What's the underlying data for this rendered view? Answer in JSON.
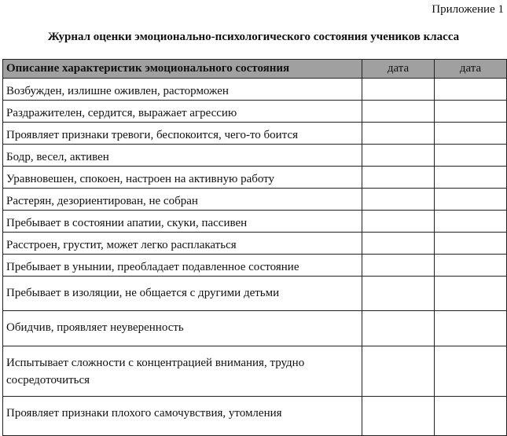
{
  "appendix": "Приложение 1",
  "title": "Журнал оценки эмоционально-психологического состояния учеников класса",
  "table": {
    "header": {
      "description": "Описание характеристик эмоционального состояния",
      "date1": "дата",
      "date2": "дата"
    },
    "header_color": "#a0a0a0",
    "rows": [
      "Возбужден, излишне оживлен, расторможен",
      "Раздражителен, сердится, выражает агрессию",
      "Проявляет признаки тревоги, беспокоится, чего-то боится",
      "Бодр, весел, активен",
      "Уравновешен, спокоен, настроен на активную работу",
      "Растерян, дезориентирован, не собран",
      "Пребывает в состоянии апатии, скуки, пассивен",
      "Расстроен,  грустит,  может легко расплакаться",
      "Пребывает в унынии, преобладает подавленное состояние",
      "Пребывает в изоляции, не общается с другими  детьми",
      "Обидчив, проявляет неуверенность",
      "Испытывает сложности с концентрацией внимания, трудно сосредоточиться",
      "Проявляет признаки плохого самочувствия, утомления"
    ]
  }
}
